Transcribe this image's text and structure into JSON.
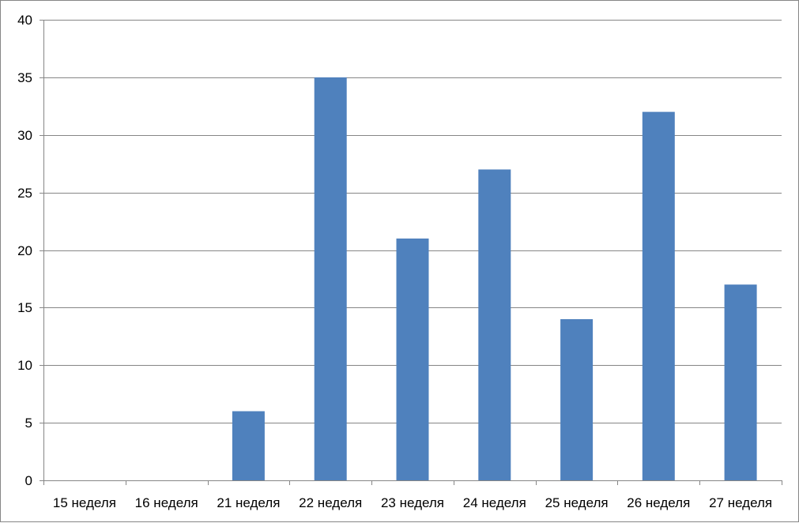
{
  "chart_data": {
    "type": "bar",
    "title": "",
    "xlabel": "",
    "ylabel": "",
    "categories": [
      "15 неделя",
      "16 неделя",
      "21 неделя",
      "22 неделя",
      "23 неделя",
      "24 неделя",
      "25 неделя",
      "26 неделя",
      "27 неделя"
    ],
    "values": [
      0,
      0,
      6,
      35,
      21,
      27,
      14,
      32,
      17
    ],
    "ylim": [
      0,
      40
    ],
    "yticks": [
      0,
      5,
      10,
      15,
      20,
      25,
      30,
      35,
      40
    ],
    "grid": true,
    "legend": "none",
    "colors": {
      "bar": "#4f81bd",
      "grid": "#868686",
      "axis": "#868686",
      "text": "#000000"
    }
  }
}
